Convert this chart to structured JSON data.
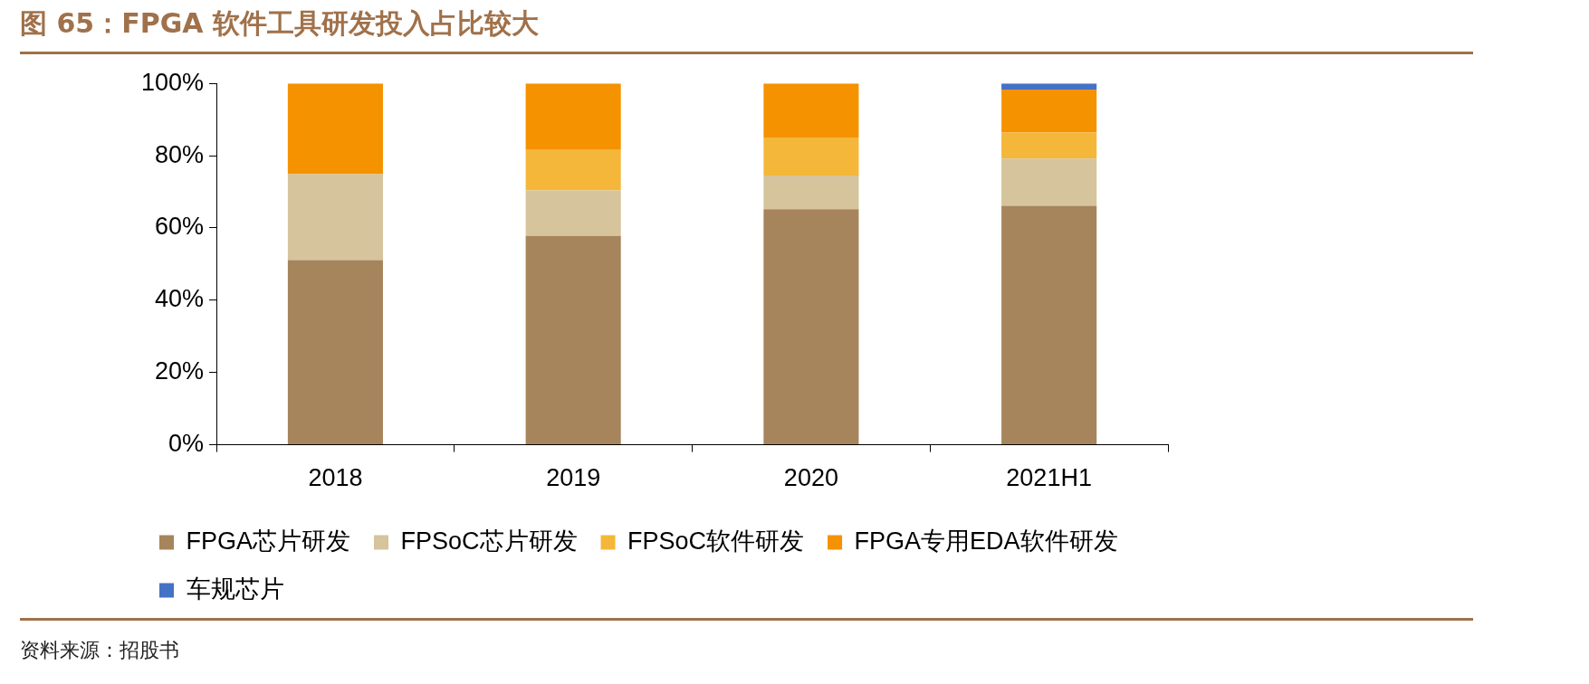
{
  "chart_data": {
    "type": "bar",
    "title": "图 65：FPGA 软件工具研发投入占比较大",
    "stacked": true,
    "categories": [
      "2018",
      "2019",
      "2020",
      "2021H1"
    ],
    "series": [
      {
        "name": "FPGA芯片研发",
        "color": "#a6845c",
        "values": [
          51.1,
          57.8,
          65.2,
          66.1
        ]
      },
      {
        "name": "FPSoC芯片研发",
        "color": "#d5c49c",
        "values": [
          23.8,
          12.6,
          9.3,
          13.1
        ]
      },
      {
        "name": "FPSoC软件研发",
        "color": "#f4b73a",
        "values": [
          0,
          11.2,
          10.5,
          7.2
        ]
      },
      {
        "name": "FPGA专用EDA软件研发",
        "color": "#f59200",
        "values": [
          25.1,
          18.4,
          15.0,
          11.9
        ]
      },
      {
        "name": "车规芯片",
        "color": "#4472c4",
        "values": [
          0,
          0,
          0,
          1.7
        ]
      }
    ],
    "ylim": [
      0,
      100
    ],
    "yticks": [
      {
        "value": 0,
        "label": "0%"
      },
      {
        "value": 20,
        "label": "20%"
      },
      {
        "value": 40,
        "label": "40%"
      },
      {
        "value": 60,
        "label": "60%"
      },
      {
        "value": 80,
        "label": "80%"
      },
      {
        "value": 100,
        "label": "100%"
      }
    ],
    "grid": false,
    "legend": "bottom",
    "annotations": [
      "资料来源：招股书"
    ]
  }
}
